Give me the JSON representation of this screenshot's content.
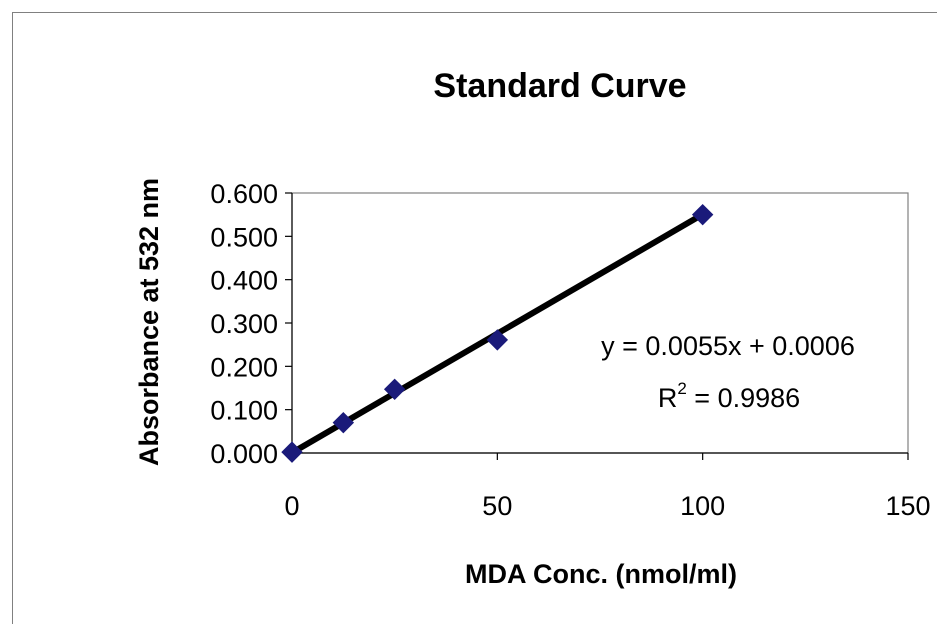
{
  "chart_data": {
    "type": "scatter",
    "title": "Standard Curve",
    "xlabel": "MDA Conc. (nmol/ml)",
    "ylabel": "Absorbance at 532 nm",
    "xlim": [
      0,
      150
    ],
    "ylim": [
      0,
      0.6
    ],
    "x_ticks": [
      "0",
      "50",
      "100",
      "150"
    ],
    "x_tick_values": [
      0,
      50,
      100,
      150
    ],
    "y_ticks": [
      "0.000",
      "0.100",
      "0.200",
      "0.300",
      "0.400",
      "0.500",
      "0.600"
    ],
    "y_tick_values": [
      0,
      0.1,
      0.2,
      0.3,
      0.4,
      0.5,
      0.6
    ],
    "grid": false,
    "legend": "none",
    "series": [
      {
        "x": [
          0,
          12.5,
          25,
          50,
          100
        ],
        "y": [
          0.002,
          0.07,
          0.147,
          0.261,
          0.55
        ]
      }
    ],
    "trendline": {
      "type": "linear",
      "slope": 0.0055,
      "intercept": 0.0006,
      "x_range": [
        0,
        100
      ]
    },
    "annotations": {
      "equation": "y = 0.0055x + 0.0006",
      "r_label": "R",
      "r_exponent": "2",
      "r_value": " = 0.9986"
    },
    "colors": {
      "marker": "#1a1a7a",
      "trendline": "#000000",
      "axis": "#000000",
      "frame": "#808080"
    }
  }
}
